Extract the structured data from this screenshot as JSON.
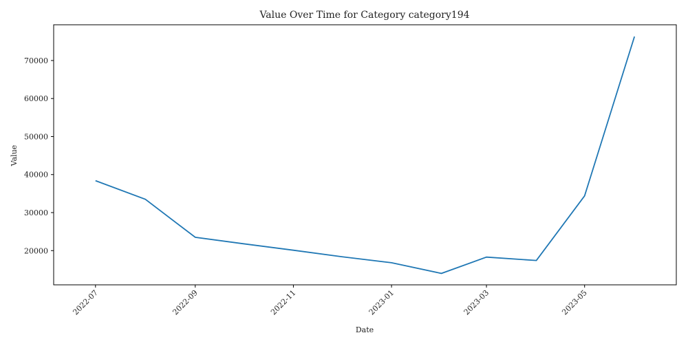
{
  "chart_data": {
    "type": "line",
    "title": "Value Over Time for Category category194",
    "xlabel": "Date",
    "ylabel": "Value",
    "grid": false,
    "legend": "none",
    "x": [
      "2022-07-01",
      "2022-08-01",
      "2022-09-01",
      "2022-10-01",
      "2022-11-01",
      "2022-12-01",
      "2023-01-01",
      "2023-02-01",
      "2023-03-01",
      "2023-04-01",
      "2023-05-01",
      "2023-06-01"
    ],
    "values": [
      38400,
      33500,
      23500,
      21800,
      20100,
      18400,
      16800,
      14000,
      18300,
      17400,
      34400,
      76300
    ],
    "xticks": [
      "2022-07",
      "2022-09",
      "2022-11",
      "2023-01",
      "2023-03",
      "2023-05"
    ],
    "yticks": [
      20000,
      30000,
      40000,
      50000,
      60000,
      70000
    ],
    "ylim": [
      11000,
      79400
    ],
    "xlim": [
      "2022-06-05",
      "2023-06-27"
    ],
    "colors": {
      "line": "#1f77b4",
      "axes": "#000000"
    }
  }
}
